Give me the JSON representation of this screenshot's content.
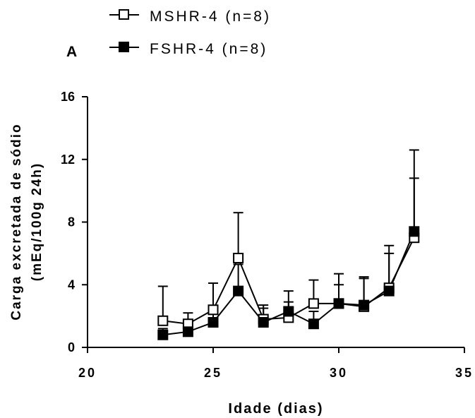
{
  "panel_label": "A",
  "chart_data": {
    "type": "line",
    "xlabel": "Idade (dias)",
    "ylabel_line1": "Carga excretada de sódio",
    "ylabel_line2": "(mEq/100g 24h)",
    "xlim": [
      20,
      35
    ],
    "ylim": [
      0,
      16
    ],
    "x_ticks": [
      20,
      25,
      30,
      35
    ],
    "y_ticks": [
      0,
      4,
      8,
      12,
      16
    ],
    "grid": false,
    "legend_position": "top",
    "x": [
      23,
      24,
      25,
      26,
      27,
      28,
      29,
      30,
      31,
      32,
      33
    ],
    "series": [
      {
        "name": "MSHR-4 (n=8)",
        "marker": "open-square",
        "color": "#000000",
        "values": [
          1.7,
          1.5,
          2.4,
          5.7,
          1.8,
          1.9,
          2.8,
          2.8,
          2.6,
          3.8,
          7.0
        ],
        "error_upper": [
          3.9,
          2.2,
          4.1,
          8.6,
          2.7,
          2.9,
          4.3,
          4.0,
          4.4,
          6.0,
          10.8
        ]
      },
      {
        "name": "FSHR-4 (n=8)",
        "marker": "filled-square",
        "color": "#000000",
        "values": [
          0.8,
          1.0,
          1.6,
          3.6,
          1.6,
          2.3,
          1.5,
          2.8,
          2.7,
          3.6,
          7.4
        ],
        "error_upper": [
          1.2,
          1.7,
          2.6,
          5.3,
          2.5,
          3.6,
          2.3,
          4.7,
          4.5,
          6.5,
          12.6
        ]
      }
    ]
  }
}
